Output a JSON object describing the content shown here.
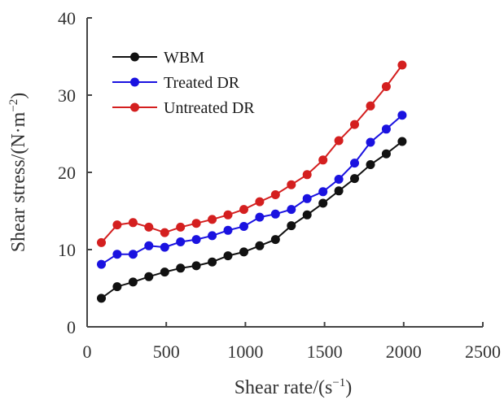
{
  "chart_data": {
    "type": "line",
    "title": "",
    "xlabel": "Shear rate/(s",
    "xlabel_sup": "−1",
    "xlabel_tail": ")",
    "ylabel": "Shear stress/(N·m",
    "ylabel_sup": "−2",
    "ylabel_tail": ")",
    "xlim": [
      0,
      2500
    ],
    "ylim": [
      0,
      40
    ],
    "xticks": [
      0,
      500,
      1000,
      1500,
      2000,
      2500
    ],
    "yticks": [
      0,
      10,
      20,
      30,
      40
    ],
    "grid": false,
    "legend_position": "top-left",
    "series": [
      {
        "name": "WBM",
        "color": "#111111",
        "x": [
          90,
          190,
          290,
          390,
          490,
          590,
          690,
          790,
          890,
          990,
          1090,
          1190,
          1290,
          1390,
          1490,
          1590,
          1690,
          1790,
          1890,
          1990
        ],
        "y": [
          3.7,
          5.2,
          5.8,
          6.5,
          7.1,
          7.6,
          7.9,
          8.4,
          9.2,
          9.7,
          10.5,
          11.3,
          13.1,
          14.5,
          16.0,
          17.6,
          19.2,
          21.0,
          22.4,
          24.0
        ]
      },
      {
        "name": "Treated DR",
        "color": "#1a12e0",
        "x": [
          90,
          190,
          290,
          390,
          490,
          590,
          690,
          790,
          890,
          990,
          1090,
          1190,
          1290,
          1390,
          1490,
          1590,
          1690,
          1790,
          1890,
          1990
        ],
        "y": [
          8.1,
          9.4,
          9.4,
          10.5,
          10.3,
          11.0,
          11.3,
          11.8,
          12.5,
          13.0,
          14.2,
          14.6,
          15.2,
          16.6,
          17.5,
          19.1,
          21.2,
          23.9,
          25.6,
          27.4
        ]
      },
      {
        "name": "Untreated DR",
        "color": "#d41f1f",
        "x": [
          90,
          190,
          290,
          390,
          490,
          590,
          690,
          790,
          890,
          990,
          1090,
          1190,
          1290,
          1390,
          1490,
          1590,
          1690,
          1790,
          1890,
          1990
        ],
        "y": [
          10.9,
          13.2,
          13.5,
          12.9,
          12.2,
          12.9,
          13.4,
          13.9,
          14.5,
          15.2,
          16.2,
          17.1,
          18.4,
          19.7,
          21.6,
          24.1,
          26.2,
          28.6,
          31.1,
          33.9
        ]
      }
    ]
  }
}
